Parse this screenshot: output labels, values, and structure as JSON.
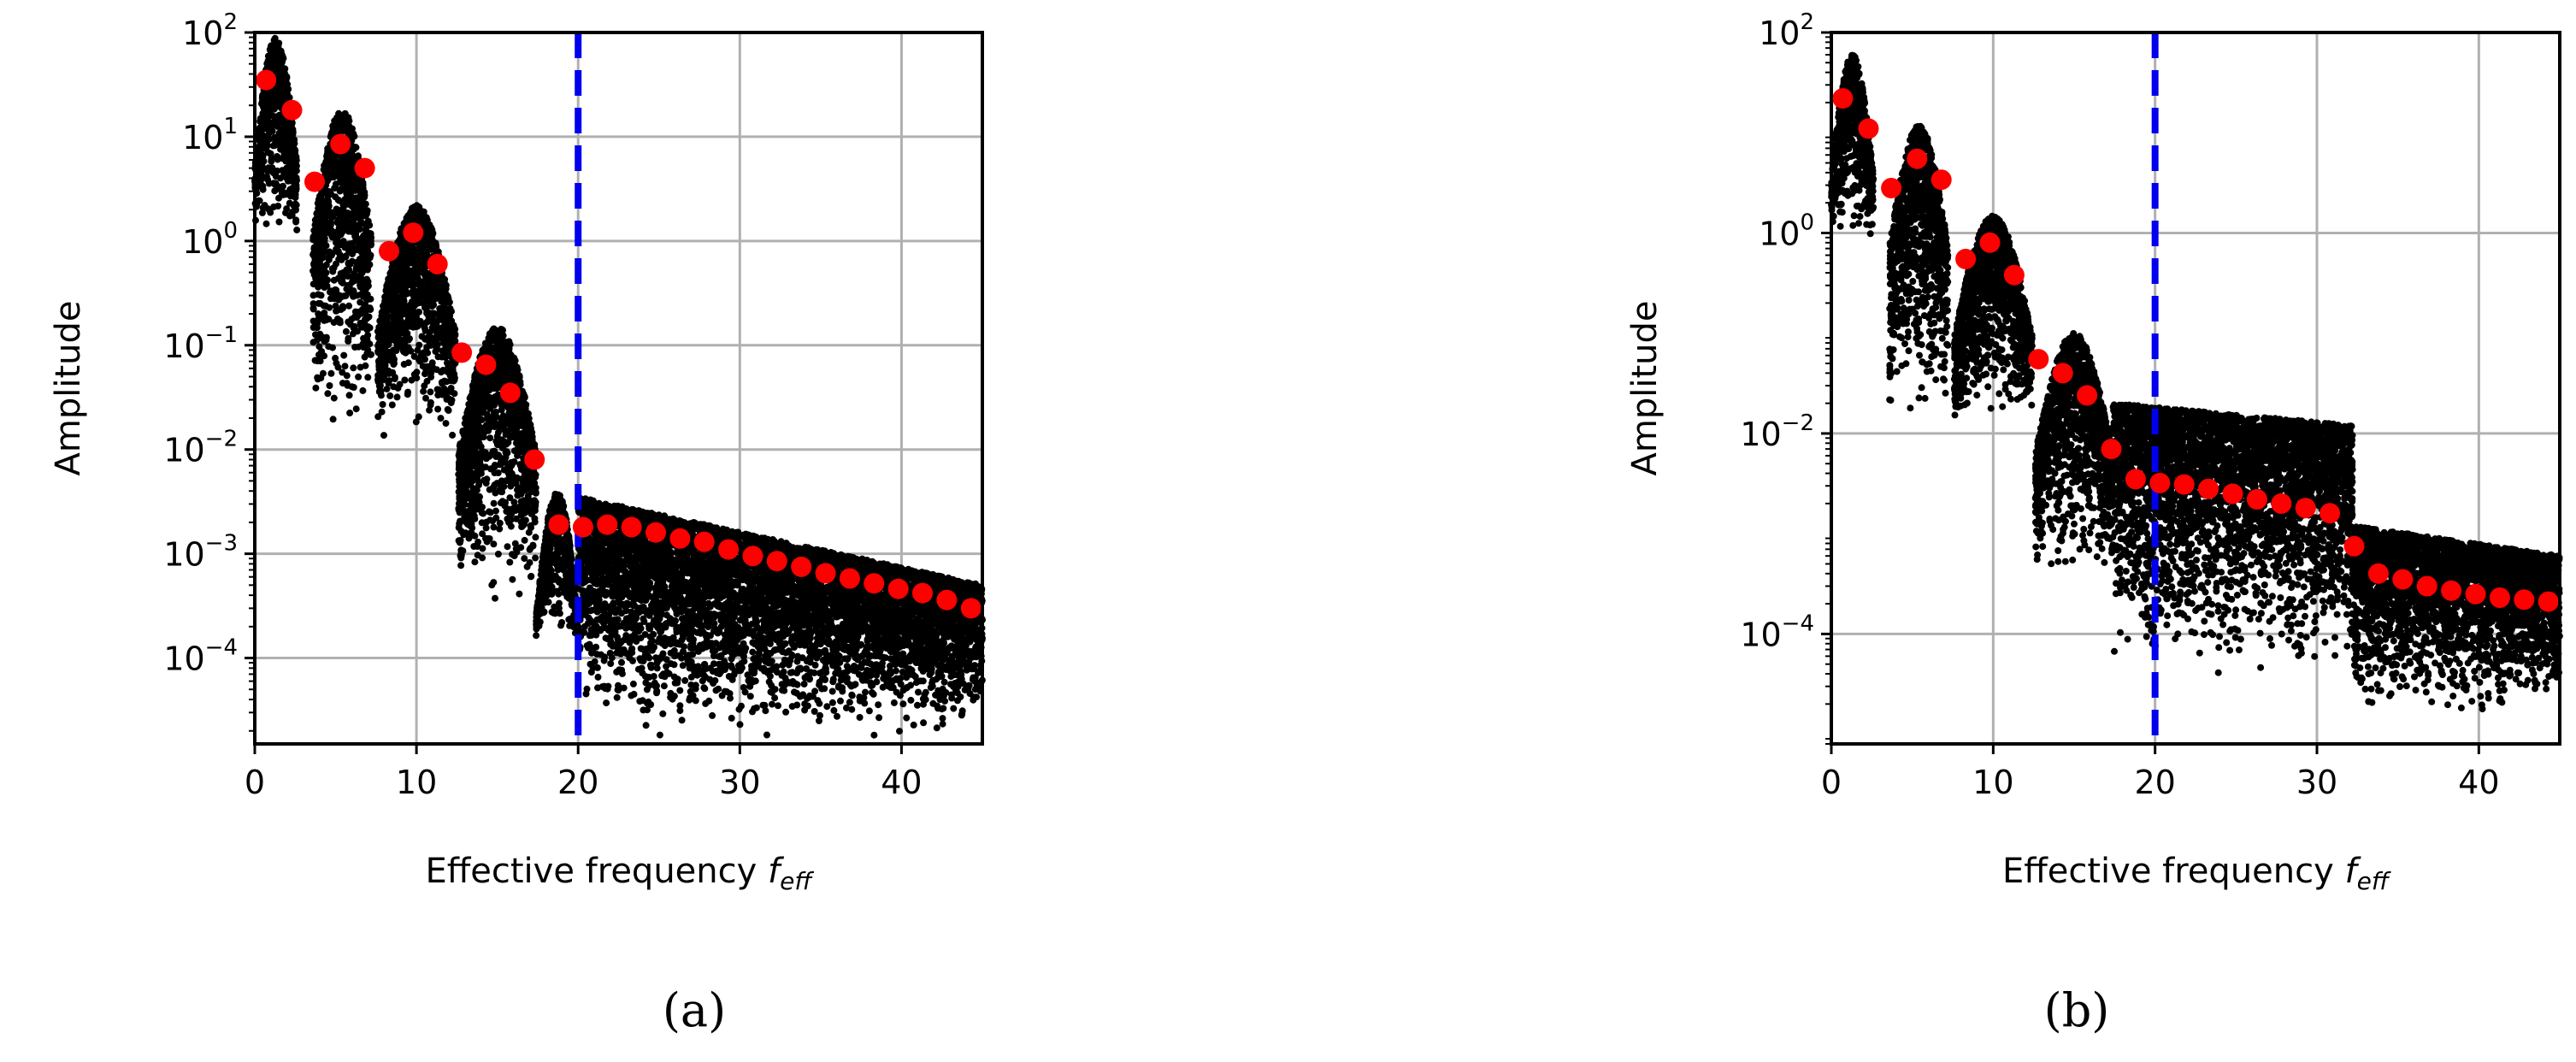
{
  "figure": {
    "panel_captions": [
      "(a)",
      "(b)"
    ]
  },
  "chart_data": [
    {
      "type": "scatter",
      "panel": "(a)",
      "xlabel": "Effective frequency",
      "xlabel_symbol": "f",
      "xlabel_symbol_sub": "eff",
      "ylabel": "Amplitude",
      "xscale": "linear",
      "yscale": "log",
      "xlim": [
        0,
        45
      ],
      "ylim": [
        1.5e-05,
        100
      ],
      "xticks": [
        0,
        10,
        20,
        30,
        40
      ],
      "yticks_exponents": [
        -4,
        -3,
        -2,
        -1,
        0,
        1,
        2
      ],
      "grid": true,
      "threshold_line": {
        "x": 20,
        "style": "dashed",
        "color": "#0000ee"
      },
      "colors": {
        "scatter": "#000000",
        "averages": "#ff0000",
        "threshold": "#0000ee",
        "grid": "#b0b0b0"
      },
      "series": [
        {
          "role": "binned-average",
          "x": [
            0.7,
            2.3,
            3.7,
            5.3,
            6.8,
            8.3,
            9.8,
            11.3,
            12.8,
            14.3,
            15.8,
            17.3,
            18.8,
            20.3,
            21.8,
            23.3,
            24.8,
            26.3,
            27.8,
            29.3,
            30.8,
            32.3,
            33.8,
            35.3,
            36.8,
            38.3,
            39.8,
            41.3,
            42.8,
            44.3
          ],
          "y": [
            35,
            18,
            3.7,
            8.5,
            5.0,
            0.8,
            1.2,
            0.6,
            0.085,
            0.065,
            0.035,
            0.008,
            0.0019,
            0.0018,
            0.0019,
            0.0018,
            0.0016,
            0.0014,
            0.0013,
            0.0011,
            0.00095,
            0.00085,
            0.00075,
            0.00065,
            0.00058,
            0.00052,
            0.00046,
            0.00042,
            0.00036,
            0.0003
          ]
        }
      ],
      "scatter_envelope": {
        "description_free": true,
        "lobes": [
          {
            "x": [
              0,
              2.6
            ],
            "y_max": 90,
            "y_min": 1.0
          },
          {
            "x": [
              3.6,
              7.2
            ],
            "y_max": 18,
            "y_min": 0.012
          },
          {
            "x": [
              7.6,
              12.4
            ],
            "y_max": 2.2,
            "y_min": 0.011
          },
          {
            "x": [
              12.6,
              17.4
            ],
            "y_max": 0.15,
            "y_min": 0.0003
          },
          {
            "x": [
              17.4,
              20
            ],
            "y_max": 0.004,
            "y_min": 0.00015
          },
          {
            "x": [
              20,
              45
            ],
            "y_max_start": 0.0035,
            "y_max_end": 0.0005,
            "y_min": 1.5e-05
          }
        ]
      }
    },
    {
      "type": "scatter",
      "panel": "(b)",
      "xlabel": "Effective frequency",
      "xlabel_symbol": "f",
      "xlabel_symbol_sub": "eff",
      "ylabel": "Amplitude",
      "xscale": "linear",
      "yscale": "log",
      "xlim": [
        0,
        45
      ],
      "ylim": [
        8e-06,
        100
      ],
      "xticks": [
        0,
        10,
        20,
        30,
        40
      ],
      "yticks_exponents": [
        -4,
        -2,
        0,
        2
      ],
      "grid": true,
      "threshold_line": {
        "x": 20,
        "style": "dashed",
        "color": "#0000ee"
      },
      "colors": {
        "scatter": "#000000",
        "averages": "#ff0000",
        "threshold": "#0000ee",
        "grid": "#b0b0b0"
      },
      "series": [
        {
          "role": "binned-average",
          "x": [
            0.7,
            2.3,
            3.7,
            5.3,
            6.8,
            8.3,
            9.8,
            11.3,
            12.8,
            14.3,
            15.8,
            17.3,
            18.8,
            20.3,
            21.8,
            23.3,
            24.8,
            26.3,
            27.8,
            29.3,
            30.8,
            32.3,
            33.8,
            35.3,
            36.8,
            38.3,
            39.8,
            41.3,
            42.8,
            44.3
          ],
          "y": [
            22,
            11,
            2.8,
            5.5,
            3.4,
            0.55,
            0.8,
            0.38,
            0.055,
            0.04,
            0.024,
            0.007,
            0.0035,
            0.0032,
            0.0031,
            0.0028,
            0.0025,
            0.0022,
            0.002,
            0.0018,
            0.0016,
            0.00075,
            0.0004,
            0.00035,
            0.0003,
            0.00027,
            0.00025,
            0.00023,
            0.00022,
            0.00021
          ]
        }
      ],
      "scatter_envelope": {
        "lobes": [
          {
            "x": [
              0,
              2.6
            ],
            "y_max": 60,
            "y_min": 0.8
          },
          {
            "x": [
              3.6,
              7.2
            ],
            "y_max": 12,
            "y_min": 0.011
          },
          {
            "x": [
              7.6,
              12.4
            ],
            "y_max": 1.5,
            "y_min": 0.01
          },
          {
            "x": [
              12.6,
              17.4
            ],
            "y_max": 0.1,
            "y_min": 0.00025
          },
          {
            "x": [
              17.4,
              32.2
            ],
            "y_max": 0.02,
            "y_max_end": 0.012,
            "y_min": 3e-05
          },
          {
            "x": [
              32.2,
              45
            ],
            "y_max_start": 0.0012,
            "y_max_end": 0.0006,
            "y_min": 1.2e-05
          }
        ]
      }
    }
  ]
}
